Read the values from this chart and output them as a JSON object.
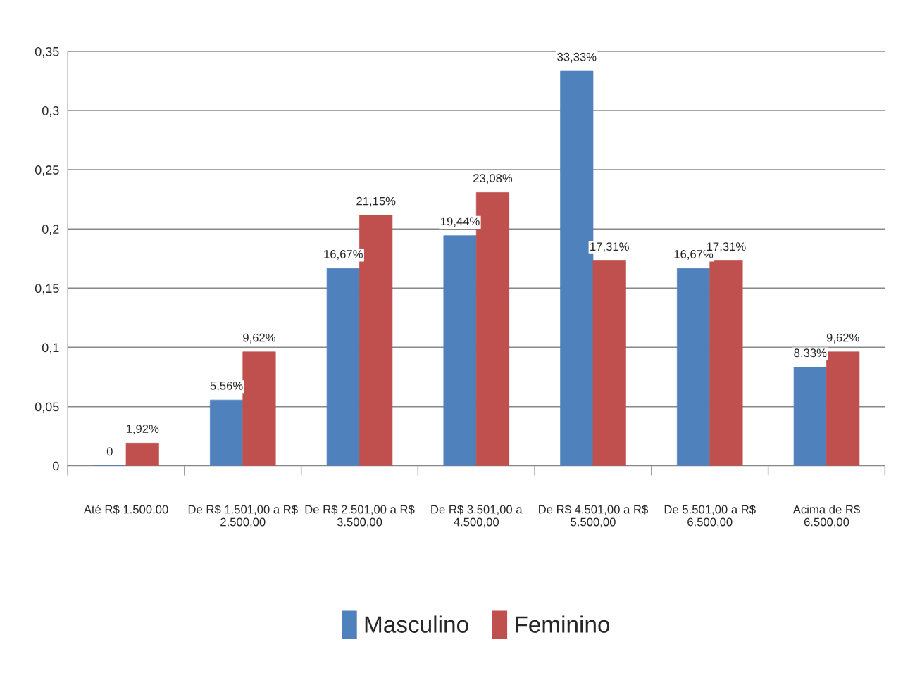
{
  "chart_data": {
    "type": "bar",
    "categories": [
      "Até R$ 1.500,00",
      "De R$ 1.501,00 a R$ 2.500,00",
      "De R$ 2.501,00 a R$ 3.500,00",
      "De R$ 3.501,00 a 4.500,00",
      "De R$ 4.501,00 a R$ 5.500,00",
      "De 5.501,00 a R$ 6.500,00",
      "Acima de R$ 6.500,00"
    ],
    "series": [
      {
        "name": "Masculino",
        "color": "#4f81bd",
        "values": [
          0,
          0.0556,
          0.1667,
          0.1944,
          0.3333,
          0.1667,
          0.0833
        ],
        "value_labels": [
          "0",
          "5,56%",
          "16,67%",
          "19,44%",
          "33,33%",
          "16,67%",
          "8,33%"
        ]
      },
      {
        "name": "Feminino",
        "color": "#c0504d",
        "values": [
          0.0192,
          0.0962,
          0.2115,
          0.2308,
          0.1731,
          0.1731,
          0.0962
        ],
        "value_labels": [
          "1,92%",
          "9,62%",
          "21,15%",
          "23,08%",
          "17,31%",
          "17,31%",
          "9,62%"
        ]
      }
    ],
    "ylim": [
      0,
      0.35
    ],
    "yticks": [
      {
        "value": 0,
        "label": "0"
      },
      {
        "value": 0.05,
        "label": "0,05"
      },
      {
        "value": 0.1,
        "label": "0,1"
      },
      {
        "value": 0.15,
        "label": "0,15"
      },
      {
        "value": 0.2,
        "label": "0,2"
      },
      {
        "value": 0.25,
        "label": "0,25"
      },
      {
        "value": 0.3,
        "label": "0,3"
      },
      {
        "value": 0.35,
        "label": "0,35"
      }
    ],
    "grid": "y",
    "legend": "bottom"
  }
}
